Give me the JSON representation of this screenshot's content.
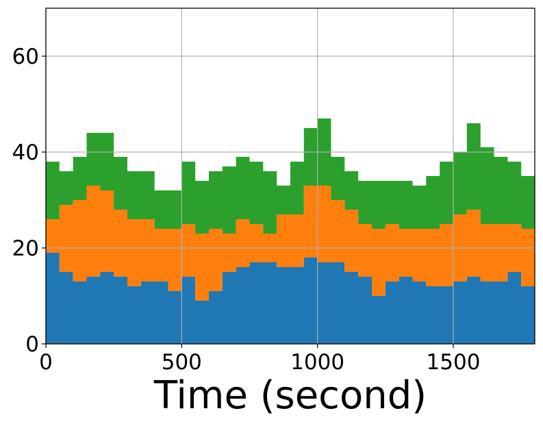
{
  "chart_data": {
    "type": "area",
    "stacked": true,
    "title": "",
    "xlabel": "Time (second)",
    "ylabel": "",
    "xlim": [
      0,
      1800
    ],
    "ylim": [
      0,
      70
    ],
    "xticks": [
      0,
      500,
      1000,
      1500
    ],
    "yticks": [
      0,
      20,
      40,
      60
    ],
    "grid": true,
    "x": [
      0,
      50,
      100,
      150,
      200,
      250,
      300,
      350,
      400,
      450,
      500,
      550,
      600,
      650,
      700,
      750,
      800,
      850,
      900,
      950,
      1000,
      1050,
      1100,
      1150,
      1200,
      1250,
      1300,
      1350,
      1400,
      1450,
      1500,
      1550,
      1600,
      1650,
      1700,
      1750,
      1800
    ],
    "series": [
      {
        "color": "#1f77b4",
        "values": [
          19,
          15,
          13,
          14,
          15,
          14,
          12,
          13,
          13,
          11,
          14,
          9,
          11,
          15,
          16,
          17,
          17,
          16,
          16,
          18,
          17,
          17,
          15,
          14,
          10,
          13,
          14,
          13,
          12,
          12,
          13,
          14,
          13,
          13,
          15,
          12,
          11
        ]
      },
      {
        "color": "#ff7f0e",
        "values": [
          7,
          14,
          17,
          19,
          17,
          14,
          14,
          13,
          11,
          13,
          11,
          14,
          13,
          8,
          10,
          8,
          6,
          11,
          11,
          15,
          16,
          13,
          13,
          11,
          14,
          12,
          10,
          11,
          12,
          13,
          14,
          14,
          12,
          12,
          10,
          12,
          14
        ]
      },
      {
        "color": "#2ca02c",
        "values": [
          12,
          7,
          9,
          11,
          12,
          11,
          10,
          10,
          8,
          8,
          13,
          11,
          12,
          14,
          13,
          13,
          13,
          6,
          11,
          12,
          14,
          9,
          8,
          9,
          10,
          9,
          10,
          9,
          11,
          13,
          13,
          18,
          16,
          14,
          13,
          11,
          12
        ]
      }
    ]
  }
}
